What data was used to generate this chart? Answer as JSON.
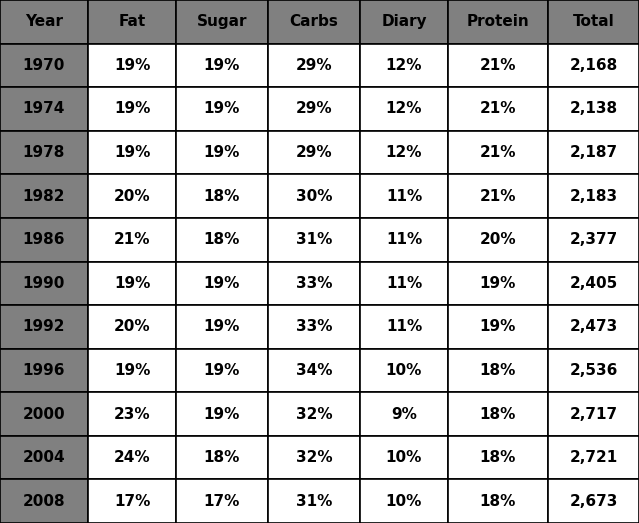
{
  "headers": [
    "Year",
    "Fat",
    "Sugar",
    "Carbs",
    "Diary",
    "Protein",
    "Total"
  ],
  "rows": [
    [
      "1970",
      "19%",
      "19%",
      "29%",
      "12%",
      "21%",
      "2,168"
    ],
    [
      "1974",
      "19%",
      "19%",
      "29%",
      "12%",
      "21%",
      "2,138"
    ],
    [
      "1978",
      "19%",
      "19%",
      "29%",
      "12%",
      "21%",
      "2,187"
    ],
    [
      "1982",
      "20%",
      "18%",
      "30%",
      "11%",
      "21%",
      "2,183"
    ],
    [
      "1986",
      "21%",
      "18%",
      "31%",
      "11%",
      "20%",
      "2,377"
    ],
    [
      "1990",
      "19%",
      "19%",
      "33%",
      "11%",
      "19%",
      "2,405"
    ],
    [
      "1992",
      "20%",
      "19%",
      "33%",
      "11%",
      "19%",
      "2,473"
    ],
    [
      "1996",
      "19%",
      "19%",
      "34%",
      "10%",
      "18%",
      "2,536"
    ],
    [
      "2000",
      "23%",
      "19%",
      "32%",
      "9%",
      "18%",
      "2,717"
    ],
    [
      "2004",
      "24%",
      "18%",
      "32%",
      "10%",
      "18%",
      "2,721"
    ],
    [
      "2008",
      "17%",
      "17%",
      "31%",
      "10%",
      "18%",
      "2,673"
    ]
  ],
  "header_bg": "#808080",
  "year_col_bg": "#808080",
  "data_bg": "#ffffff",
  "header_text_color": "#000000",
  "year_text_color": "#000000",
  "data_text_color": "#000000",
  "border_color": "#000000",
  "figsize": [
    6.39,
    5.23
  ],
  "dpi": 100
}
